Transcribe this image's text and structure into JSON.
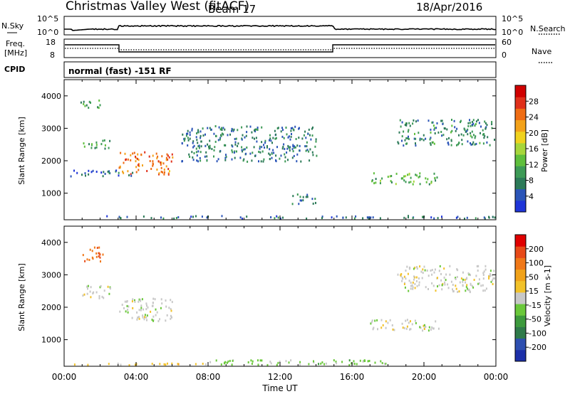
{
  "header": {
    "title": "Christmas Valley West (fitACF)",
    "beam": "Beam 17",
    "date": "18/Apr/2016"
  },
  "top_panels": {
    "nsky": {
      "label": "N.Sky",
      "y_ticks": [
        "10^5",
        "10^0"
      ]
    },
    "nsearch": {
      "label": "N.Search",
      "y_ticks": [
        "10^5",
        "10^0"
      ]
    },
    "freq": {
      "label_lines": [
        "Freq.",
        "[MHz]"
      ],
      "y_ticks": [
        "18",
        "8"
      ]
    },
    "nave": {
      "label": "Nave",
      "y_ticks": [
        "60",
        "0"
      ]
    },
    "cpid": {
      "label": "CPID",
      "value": "normal (fast) -151 RF"
    }
  },
  "colors": {
    "power_scale": [
      "#1f35d8",
      "#2b55b8",
      "#2c7a58",
      "#3d9a56",
      "#5fbf3c",
      "#a7d63b",
      "#f0d21e",
      "#f3a21a",
      "#ef6d14",
      "#e0301a",
      "#d00000"
    ],
    "velocity_scale": [
      "#1c2fa8",
      "#2e4fb0",
      "#2f7a4a",
      "#3d9a3d",
      "#6ac83a",
      "#c8c8c8",
      "#f2c22a",
      "#f0a21a",
      "#f07818",
      "#e84a18",
      "#e00000"
    ]
  },
  "chart_data": [
    {
      "type": "heatmap",
      "title": "Power",
      "ylabel": "Slant Range [km]",
      "xlabel": "",
      "x_range": [
        0,
        24
      ],
      "ylim": [
        180,
        4500
      ],
      "y_ticks": [
        1000,
        2000,
        3000,
        4000
      ],
      "colorbar": {
        "label": "Power [dB]",
        "range": [
          0,
          32
        ],
        "ticks": [
          "4",
          "8",
          "12",
          "16",
          "20",
          "24",
          "28"
        ]
      },
      "regions": [
        {
          "t": [
            0.3,
            24.0
          ],
          "r": [
            180,
            330
          ],
          "value": 6
        },
        {
          "t": [
            1.0,
            2.6
          ],
          "r": [
            2400,
            2700
          ],
          "value": 10
        },
        {
          "t": [
            0.9,
            2.0
          ],
          "r": [
            3600,
            3900
          ],
          "value": 10
        },
        {
          "t": [
            3.0,
            6.0
          ],
          "r": [
            1600,
            2300
          ],
          "value": 24
        },
        {
          "t": [
            0.3,
            4.0
          ],
          "r": [
            1550,
            1750
          ],
          "value": 6
        },
        {
          "t": [
            6.5,
            14.0
          ],
          "r": [
            2000,
            3100
          ],
          "value": 7
        },
        {
          "t": [
            12.5,
            14.0
          ],
          "r": [
            700,
            1000
          ],
          "value": 8
        },
        {
          "t": [
            17.0,
            20.8
          ],
          "r": [
            1300,
            1650
          ],
          "value": 12
        },
        {
          "t": [
            18.5,
            24.0
          ],
          "r": [
            2500,
            3300
          ],
          "value": 8
        }
      ]
    },
    {
      "type": "heatmap",
      "title": "Velocity",
      "ylabel": "Slant Range [km]",
      "xlabel": "Time UT",
      "x_range": [
        0,
        24
      ],
      "x_ticks": [
        "00:00",
        "04:00",
        "08:00",
        "12:00",
        "16:00",
        "20:00",
        "00:00"
      ],
      "ylim": [
        180,
        4500
      ],
      "y_ticks": [
        1000,
        2000,
        3000,
        4000
      ],
      "colorbar": {
        "label": "Velocity [m s-1]",
        "range": [
          -250,
          250
        ],
        "ticks": [
          "200",
          "100",
          "50",
          "15",
          "-15",
          "-50",
          "-100",
          "-200"
        ]
      },
      "regions": [
        {
          "t": [
            8.0,
            18.0
          ],
          "r": [
            180,
            400
          ],
          "value": -40
        },
        {
          "t": [
            0.3,
            8.0
          ],
          "r": [
            180,
            300
          ],
          "value": 40
        },
        {
          "t": [
            1.0,
            2.6
          ],
          "r": [
            2300,
            2700
          ],
          "value": 0
        },
        {
          "t": [
            3.0,
            6.0
          ],
          "r": [
            1600,
            2300
          ],
          "value": 0
        },
        {
          "t": [
            1.0,
            2.2
          ],
          "r": [
            3400,
            3900
          ],
          "value": 150
        },
        {
          "t": [
            17.0,
            20.8
          ],
          "r": [
            1300,
            1650
          ],
          "value": 0
        },
        {
          "t": [
            18.5,
            24.0
          ],
          "r": [
            2500,
            3300
          ],
          "value": 0
        }
      ]
    }
  ]
}
